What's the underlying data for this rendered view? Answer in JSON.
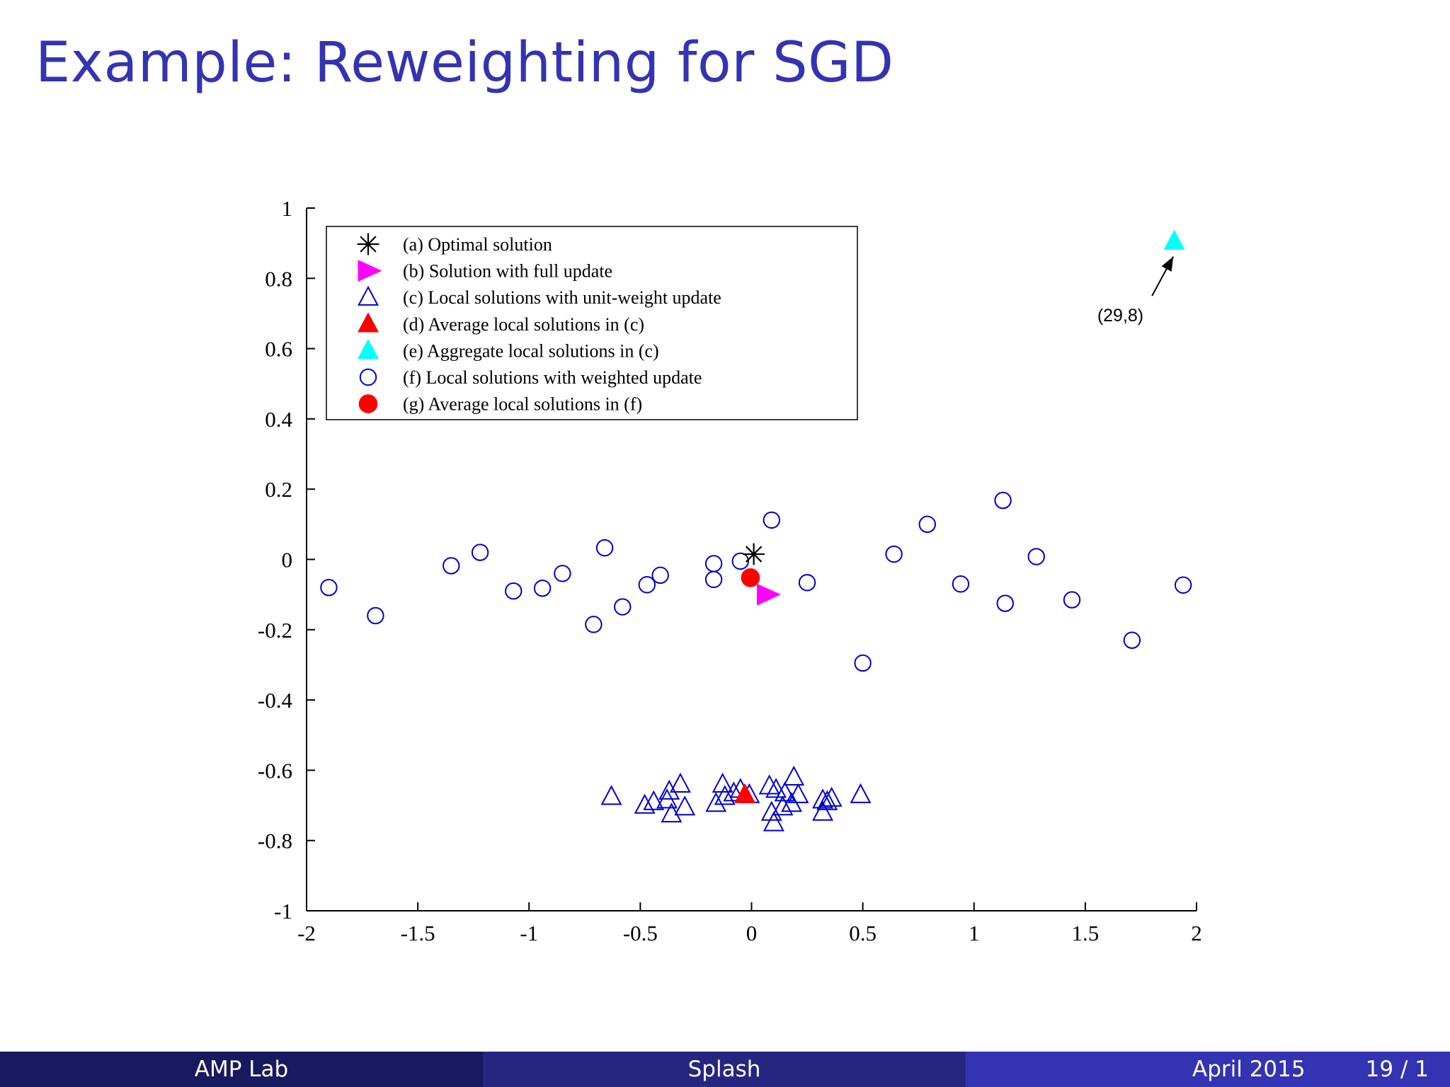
{
  "slide": {
    "title": "Example: Reweighting for SGD",
    "footer_left": "AMP Lab",
    "footer_center": "Splash",
    "footer_date": "April 2015",
    "footer_page": "19 / 1"
  },
  "chart_data": {
    "type": "scatter",
    "title": "",
    "xlabel": "",
    "ylabel": "",
    "xlim": [
      -2,
      2
    ],
    "ylim": [
      -1,
      1
    ],
    "x_ticks": [
      "-2",
      "-1.5",
      "-1",
      "-0.5",
      "0",
      "0.5",
      "1",
      "1.5",
      "2"
    ],
    "y_ticks": [
      "1",
      "0.8",
      "0.6",
      "0.4",
      "0.2",
      "0",
      "-0.2",
      "-0.4",
      "-0.6",
      "-0.8",
      "-1"
    ],
    "grid": false,
    "legend_position": "top-left",
    "annotation": {
      "text": "(29,8)",
      "arrow_to": [
        1.8,
        0.85
      ],
      "arrow_from": [
        1.66,
        0.73
      ]
    },
    "series": [
      {
        "name": "(a) Optimal solution",
        "marker": "asterisk",
        "color": "#000000",
        "points": [
          [
            0.01,
            0.015
          ]
        ]
      },
      {
        "name": "(b) Solution with full update",
        "marker": "triangle-right",
        "color": "#ff00ff",
        "points": [
          [
            0.07,
            -0.1
          ]
        ]
      },
      {
        "name": "(c) Local solutions with unit-weight update",
        "marker": "triangle-open",
        "color": "#0000cc",
        "points": [
          [
            -0.63,
            -0.675
          ],
          [
            -0.48,
            -0.7
          ],
          [
            -0.44,
            -0.69
          ],
          [
            -0.38,
            -0.685
          ],
          [
            -0.37,
            -0.66
          ],
          [
            -0.36,
            -0.725
          ],
          [
            -0.32,
            -0.64
          ],
          [
            -0.3,
            -0.705
          ],
          [
            -0.16,
            -0.695
          ],
          [
            -0.13,
            -0.64
          ],
          [
            -0.12,
            -0.675
          ],
          [
            -0.08,
            -0.665
          ],
          [
            -0.05,
            -0.655
          ],
          [
            -0.01,
            -0.67
          ],
          [
            0.08,
            -0.645
          ],
          [
            0.09,
            -0.72
          ],
          [
            0.11,
            -0.655
          ],
          [
            0.1,
            -0.75
          ],
          [
            0.14,
            -0.705
          ],
          [
            0.15,
            -0.665
          ],
          [
            0.18,
            -0.695
          ],
          [
            0.19,
            -0.62
          ],
          [
            0.21,
            -0.67
          ],
          [
            0.32,
            -0.685
          ],
          [
            0.32,
            -0.72
          ],
          [
            0.34,
            -0.69
          ],
          [
            0.36,
            -0.68
          ],
          [
            0.49,
            -0.67
          ]
        ]
      },
      {
        "name": "(d) Average local solutions in (c)",
        "marker": "triangle-filled",
        "color": "#ff0000",
        "points": [
          [
            -0.03,
            -0.67
          ]
        ]
      },
      {
        "name": "(e) Aggregate local solutions in (c)",
        "marker": "triangle-filled",
        "color": "#00ffff",
        "points": [
          [
            1.9,
            0.905
          ]
        ]
      },
      {
        "name": "(f) Local solutions with weighted update",
        "marker": "circle-open",
        "color": "#0000cc",
        "points": [
          [
            -1.9,
            -0.08
          ],
          [
            -1.69,
            -0.16
          ],
          [
            -1.35,
            -0.018
          ],
          [
            -1.22,
            0.02
          ],
          [
            -1.07,
            -0.09
          ],
          [
            -0.94,
            -0.082
          ],
          [
            -0.85,
            -0.04
          ],
          [
            -0.71,
            -0.185
          ],
          [
            -0.66,
            0.033
          ],
          [
            -0.58,
            -0.135
          ],
          [
            -0.47,
            -0.072
          ],
          [
            -0.41,
            -0.045
          ],
          [
            -0.17,
            -0.012
          ],
          [
            -0.17,
            -0.057
          ],
          [
            -0.05,
            -0.005
          ],
          [
            0.09,
            0.112
          ],
          [
            0.25,
            -0.066
          ],
          [
            0.5,
            -0.295
          ],
          [
            0.64,
            0.015
          ],
          [
            0.79,
            0.1
          ],
          [
            0.94,
            -0.07
          ],
          [
            1.13,
            0.168
          ],
          [
            1.14,
            -0.125
          ],
          [
            1.28,
            0.008
          ],
          [
            1.44,
            -0.115
          ],
          [
            1.71,
            -0.23
          ],
          [
            1.94,
            -0.073
          ]
        ]
      },
      {
        "name": "(g) Average local solutions in (f)",
        "marker": "circle-filled",
        "color": "#ff0000",
        "points": [
          [
            -0.005,
            -0.052
          ]
        ]
      }
    ]
  }
}
